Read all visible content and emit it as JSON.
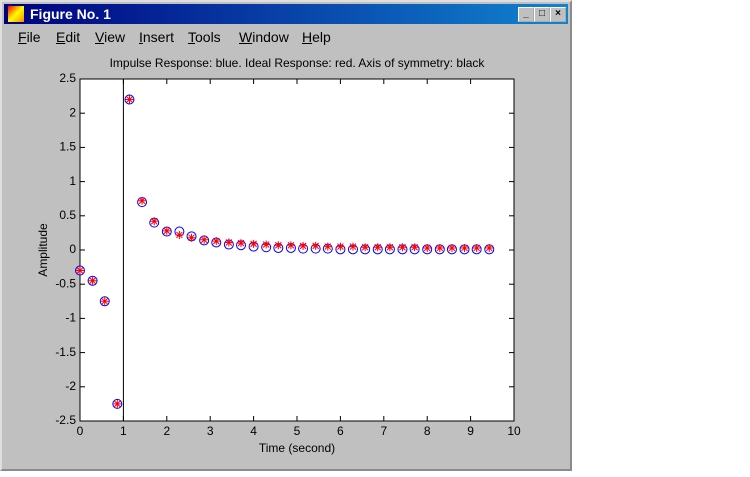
{
  "window": {
    "title": "Figure No. 1",
    "menu": [
      "File",
      "Edit",
      "View",
      "Insert",
      "Tools",
      "Window",
      "Help"
    ]
  },
  "chart_data": {
    "type": "scatter",
    "title": "Impulse Response: blue. Ideal Response: red. Axis of symmetry: black",
    "x_label": "Time (second)",
    "y_label": "Amplitude",
    "x": [
      0,
      0.29,
      0.57,
      0.86,
      1.14,
      1.43,
      1.71,
      2,
      2.29,
      2.57,
      2.86,
      3.14,
      3.43,
      3.71,
      4,
      4.29,
      4.57,
      4.86,
      5.14,
      5.43,
      5.71,
      6,
      6.29,
      6.57,
      6.86,
      7.14,
      7.43,
      7.71,
      8,
      8.29,
      8.57,
      8.86,
      9.14,
      9.43
    ],
    "series": [
      {
        "color": "#0000ff",
        "marker": "circle",
        "values": [
          -0.3,
          -0.45,
          -0.75,
          -2.25,
          2.2,
          0.7,
          0.4,
          0.27,
          0.27,
          0.2,
          0.14,
          0.11,
          0.08,
          0.07,
          0.05,
          0.04,
          0.03,
          0.03,
          0.02,
          0.02,
          0.02,
          0.01,
          0.01,
          0.01,
          0.01,
          0.01,
          0.01,
          0.01,
          0.01,
          0.01,
          0.01,
          0.01,
          0.01,
          0.01
        ]
      },
      {
        "color": "#ff0000",
        "marker": "star",
        "values": [
          -0.3,
          -0.45,
          -0.75,
          -2.25,
          2.2,
          0.72,
          0.42,
          0.28,
          0.22,
          0.18,
          0.15,
          0.13,
          0.11,
          0.1,
          0.09,
          0.08,
          0.07,
          0.07,
          0.06,
          0.06,
          0.05,
          0.05,
          0.05,
          0.04,
          0.04,
          0.04,
          0.04,
          0.04,
          0.03,
          0.03,
          0.03,
          0.03,
          0.03,
          0.03
        ]
      }
    ],
    "symmetry_x": 1,
    "xlim": [
      0,
      10
    ],
    "xticks": [
      0,
      1,
      2,
      3,
      4,
      5,
      6,
      7,
      8,
      9,
      10
    ],
    "ylim": [
      -2.5,
      2.5
    ],
    "yticks": [
      -2.5,
      -2,
      -1.5,
      -1,
      -0.5,
      0,
      0.5,
      1,
      1.5,
      2,
      2.5
    ],
    "grid": false
  }
}
